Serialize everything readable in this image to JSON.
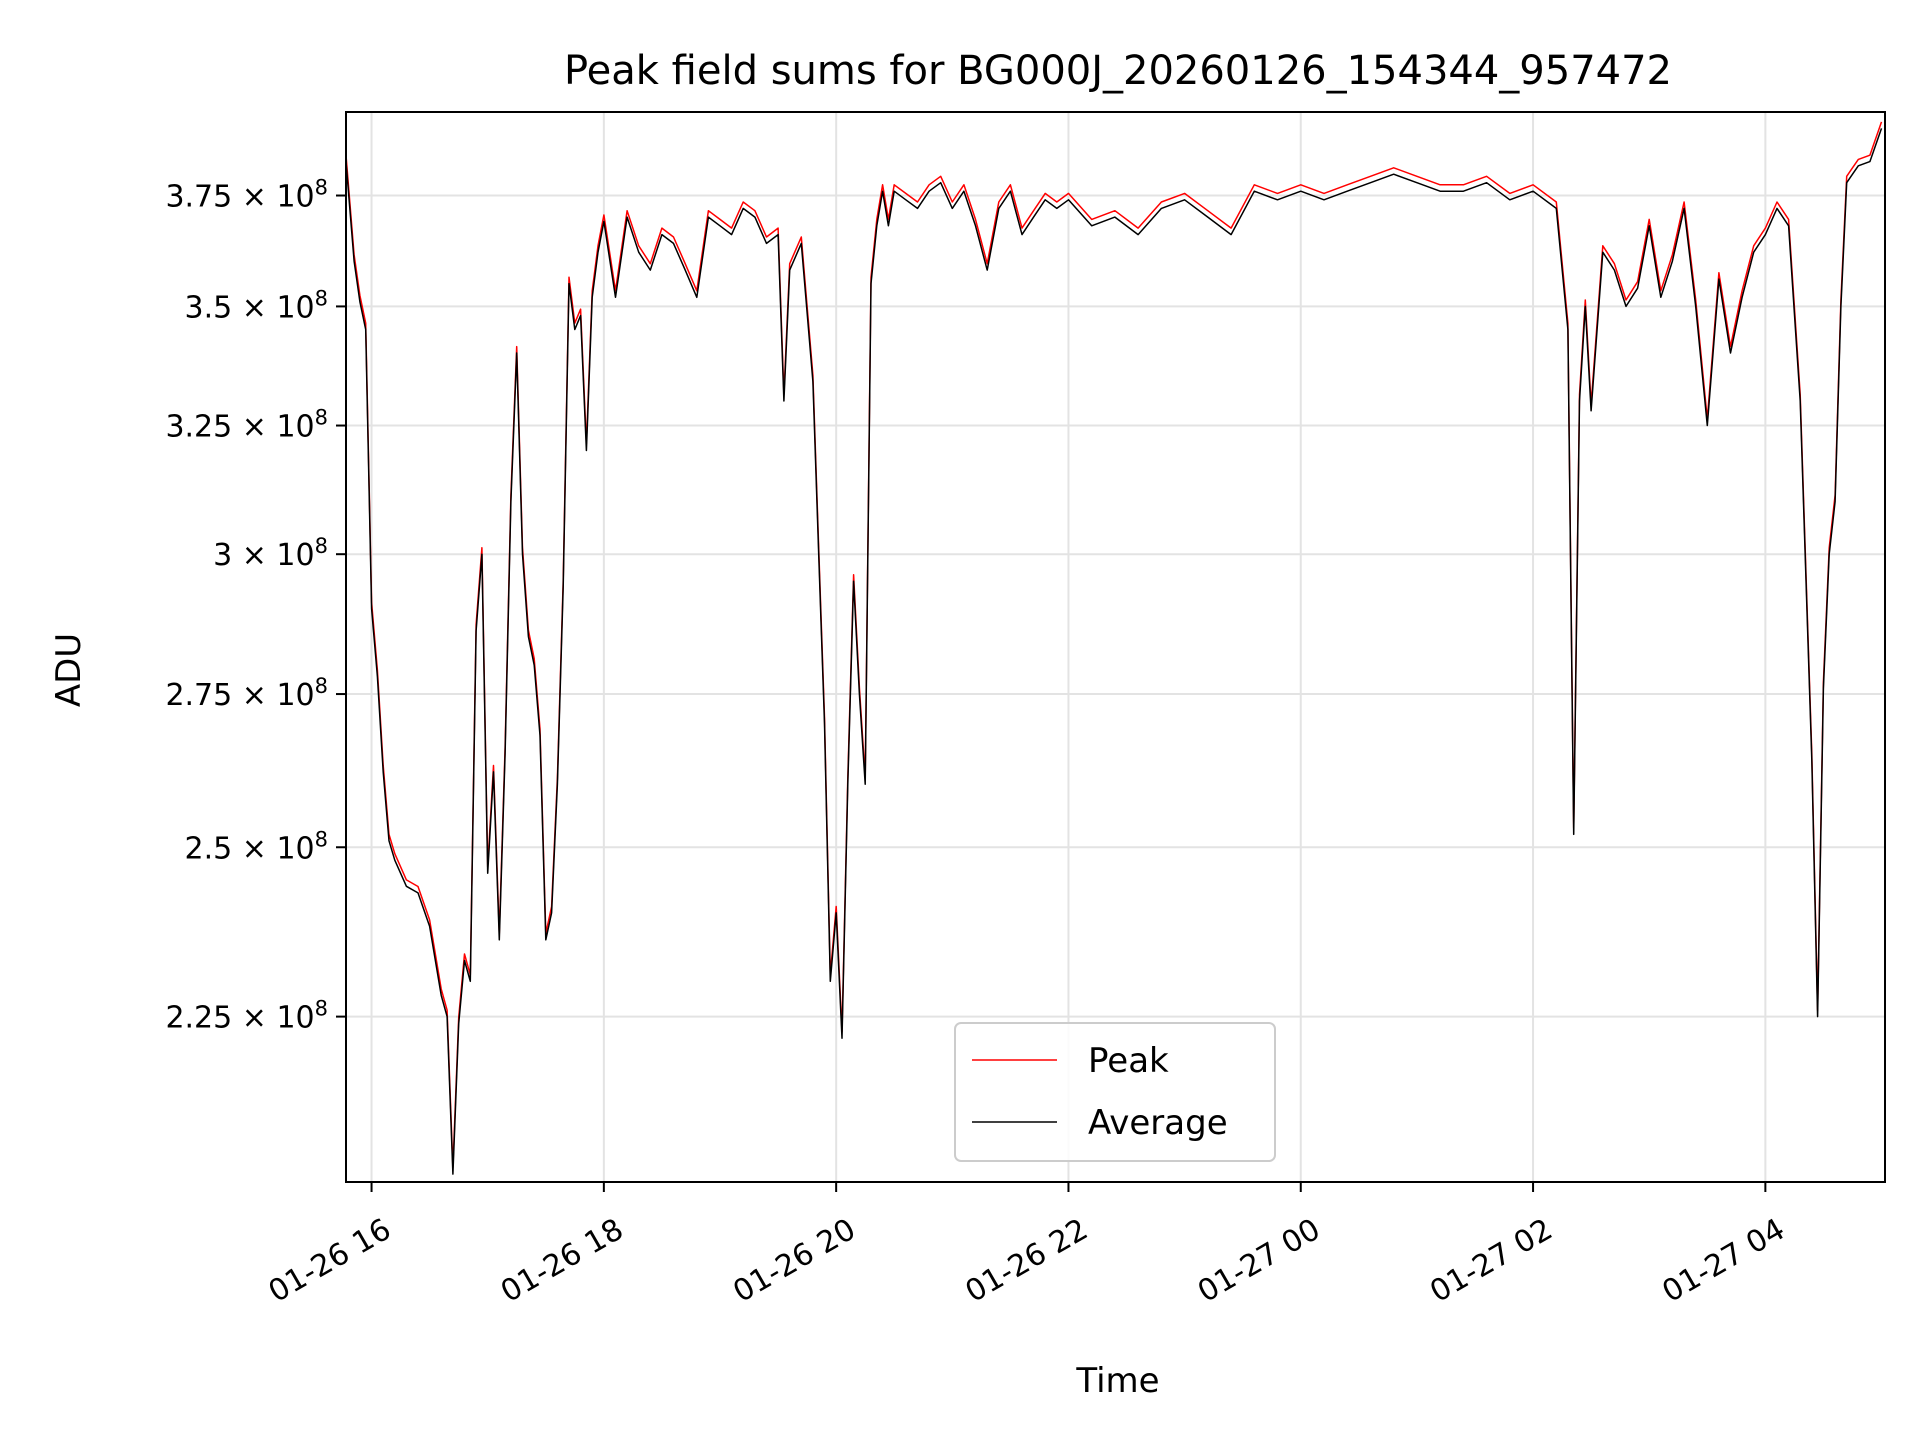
{
  "chart_data": {
    "type": "line",
    "title": "Peak field sums for BG000J_20260126_154344_957472",
    "xlabel": "Time",
    "ylabel": "ADU",
    "x_unit": "hours since 2026-01-26 00:00",
    "xlim": [
      15.78,
      29.03
    ],
    "ylim": [
      203000000,
      395000000
    ],
    "y_scale": "log",
    "grid": true,
    "legend_position": "lower-center",
    "x_ticks": [
      {
        "value": 16,
        "label": "01-26 16"
      },
      {
        "value": 18,
        "label": "01-26 18"
      },
      {
        "value": 20,
        "label": "01-26 20"
      },
      {
        "value": 22,
        "label": "01-26 22"
      },
      {
        "value": 24,
        "label": "01-27 00"
      },
      {
        "value": 26,
        "label": "01-27 02"
      },
      {
        "value": 28,
        "label": "01-27 04"
      }
    ],
    "y_ticks": [
      {
        "value": 225000000,
        "mantissa": "2.25",
        "exponent": "8"
      },
      {
        "value": 250000000,
        "mantissa": "2.5",
        "exponent": "8"
      },
      {
        "value": 275000000,
        "mantissa": "2.75",
        "exponent": "8"
      },
      {
        "value": 300000000,
        "mantissa": "3",
        "exponent": "8"
      },
      {
        "value": 325000000,
        "mantissa": "3.25",
        "exponent": "8"
      },
      {
        "value": 350000000,
        "mantissa": "3.5",
        "exponent": "8"
      },
      {
        "value": 375000000,
        "mantissa": "3.75",
        "exponent": "8"
      }
    ],
    "series": [
      {
        "name": "Peak",
        "color": "#ff0000",
        "offset_ratio": 1.004
      },
      {
        "name": "Average",
        "color": "#000000",
        "offset_ratio": 1.0
      }
    ],
    "x": [
      15.78,
      15.85,
      15.9,
      15.95,
      16.0,
      16.05,
      16.1,
      16.15,
      16.2,
      16.3,
      16.4,
      16.5,
      16.6,
      16.65,
      16.7,
      16.75,
      16.8,
      16.85,
      16.9,
      16.95,
      17.0,
      17.05,
      17.1,
      17.15,
      17.2,
      17.25,
      17.3,
      17.35,
      17.4,
      17.45,
      17.5,
      17.55,
      17.6,
      17.65,
      17.7,
      17.75,
      17.8,
      17.85,
      17.9,
      17.95,
      18.0,
      18.1,
      18.2,
      18.3,
      18.4,
      18.5,
      18.6,
      18.7,
      18.8,
      18.9,
      19.0,
      19.1,
      19.2,
      19.3,
      19.4,
      19.5,
      19.55,
      19.6,
      19.7,
      19.8,
      19.85,
      19.9,
      19.95,
      20.0,
      20.05,
      20.1,
      20.15,
      20.2,
      20.25,
      20.3,
      20.35,
      20.4,
      20.45,
      20.5,
      20.6,
      20.7,
      20.8,
      20.9,
      21.0,
      21.1,
      21.2,
      21.3,
      21.4,
      21.5,
      21.6,
      21.7,
      21.8,
      21.9,
      22.0,
      22.2,
      22.4,
      22.6,
      22.8,
      23.0,
      23.2,
      23.4,
      23.6,
      23.8,
      24.0,
      24.2,
      24.4,
      24.6,
      24.8,
      25.0,
      25.2,
      25.4,
      25.6,
      25.8,
      26.0,
      26.2,
      26.3,
      26.35,
      26.4,
      26.45,
      26.5,
      26.6,
      26.7,
      26.8,
      26.9,
      27.0,
      27.1,
      27.2,
      27.3,
      27.4,
      27.5,
      27.6,
      27.7,
      27.8,
      27.9,
      28.0,
      28.1,
      28.2,
      28.3,
      28.4,
      28.45,
      28.5,
      28.55,
      28.6,
      28.65,
      28.7,
      28.75,
      28.8,
      28.9,
      29.0
    ],
    "average": [
      383000000,
      360000000,
      351000000,
      345000000,
      290000000,
      278000000,
      262000000,
      251000000,
      248000000,
      244000000,
      243000000,
      238000000,
      228000000,
      225000000,
      204000000,
      224000000,
      233000000,
      230000000,
      286000000,
      300000000,
      246000000,
      262000000,
      236000000,
      265000000,
      310000000,
      340000000,
      300000000,
      285000000,
      280000000,
      268000000,
      236000000,
      240000000,
      260000000,
      294000000,
      355000000,
      345000000,
      348000000,
      320000000,
      352000000,
      362000000,
      369000000,
      352000000,
      370000000,
      362000000,
      358000000,
      366000000,
      364000000,
      358000000,
      352000000,
      370000000,
      368000000,
      366000000,
      372000000,
      370000000,
      364000000,
      366000000,
      330000000,
      358000000,
      364000000,
      334000000,
      300000000,
      270000000,
      230000000,
      240000000,
      222000000,
      260000000,
      295000000,
      275000000,
      260000000,
      355000000,
      368000000,
      376000000,
      368000000,
      376000000,
      374000000,
      372000000,
      376000000,
      378000000,
      372000000,
      376000000,
      368000000,
      358000000,
      372000000,
      376000000,
      366000000,
      370000000,
      374000000,
      372000000,
      374000000,
      368000000,
      370000000,
      366000000,
      372000000,
      374000000,
      370000000,
      366000000,
      376000000,
      374000000,
      376000000,
      374000000,
      376000000,
      378000000,
      380000000,
      378000000,
      376000000,
      376000000,
      378000000,
      374000000,
      376000000,
      372000000,
      345000000,
      252000000,
      330000000,
      350000000,
      328000000,
      362000000,
      358000000,
      350000000,
      354000000,
      368000000,
      352000000,
      360000000,
      372000000,
      350000000,
      325000000,
      356000000,
      340000000,
      352000000,
      362000000,
      366000000,
      372000000,
      368000000,
      330000000,
      264000000,
      225000000,
      276000000,
      300000000,
      310000000,
      350000000,
      378000000,
      380000000,
      382000000,
      383000000,
      391000000
    ]
  }
}
